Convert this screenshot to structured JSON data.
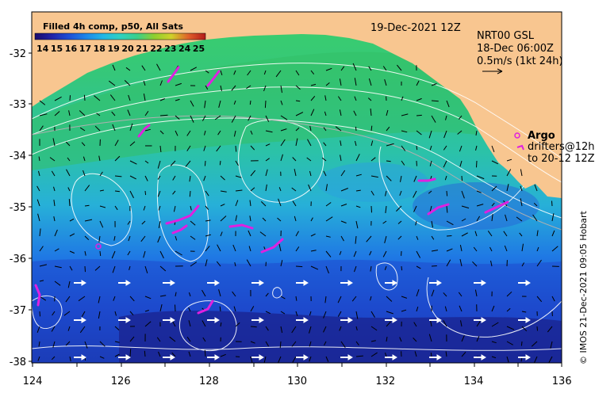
{
  "colorbar": {
    "title": "Filled 4h comp, p50, All Sats",
    "ticks": [
      "14",
      "15",
      "16",
      "17",
      "18",
      "19",
      "20",
      "21",
      "22",
      "23",
      "24",
      "25"
    ],
    "colors": [
      "#1b0a6b",
      "#2323a8",
      "#1f4fd6",
      "#1e86e8",
      "#22b7e6",
      "#2fd0c0",
      "#3bcf8a",
      "#4fc24c",
      "#8fcf2e",
      "#d0d12a",
      "#e6a52a",
      "#e0602a",
      "#b21a1a"
    ]
  },
  "header": {
    "date": "19-Dec-2021 12Z",
    "current_source": "NRT00 GSL",
    "current_time": "18-Dec 06:00Z",
    "scale_label": "0.5m/s (1kt 24h)"
  },
  "legend": {
    "argo": "Argo",
    "drifters_line1": "drifters@12h",
    "drifters_line2": "to 20-12 12Z",
    "argo_color": "#e020e0"
  },
  "axes": {
    "x_ticks": [
      "124",
      "126",
      "128",
      "130",
      "132",
      "134",
      "136"
    ],
    "y_ticks": [
      "-32",
      "-33",
      "-34",
      "-35",
      "-36",
      "-37",
      "-38"
    ]
  },
  "credit": "© IMOS 21-Dec-2021 09:05 Hobart",
  "colors": {
    "land": "#f8c690",
    "frame": "#000000",
    "contour": "#ffffff"
  }
}
